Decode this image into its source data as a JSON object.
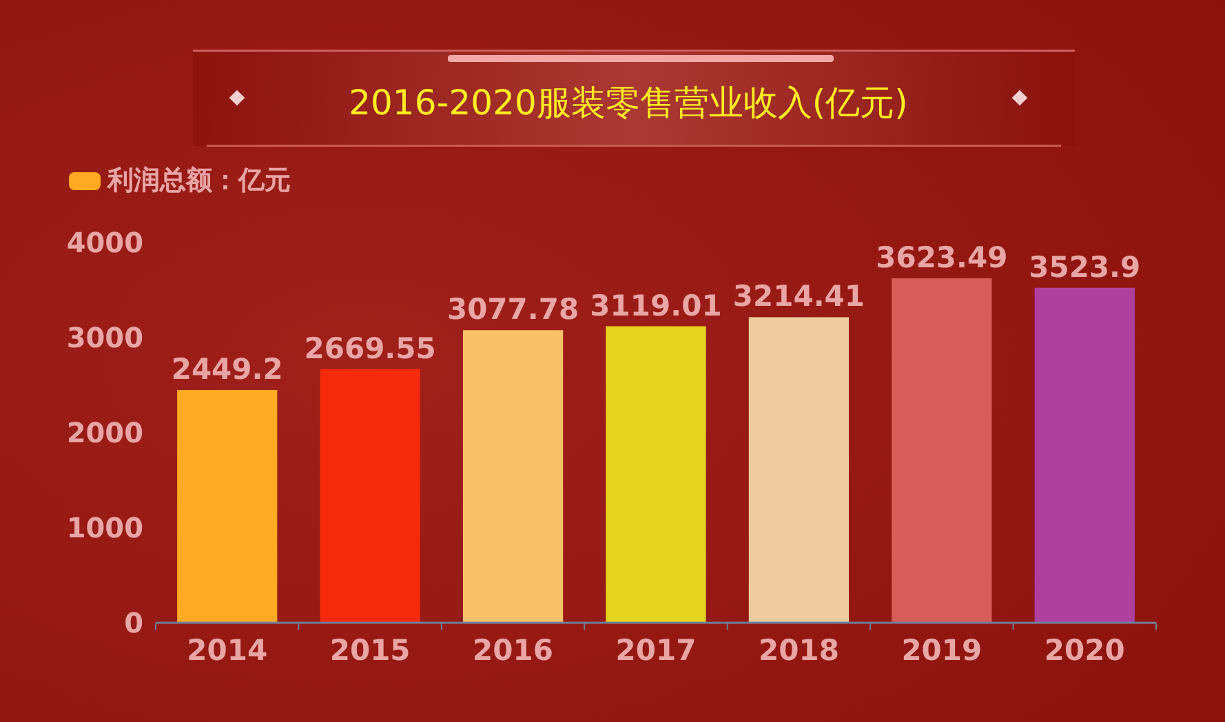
{
  "chart_data": {
    "type": "bar",
    "title": "2016-2020服装零售营业收入(亿元)",
    "categories": [
      "2014",
      "2015",
      "2016",
      "2017",
      "2018",
      "2019",
      "2020"
    ],
    "series": [
      {
        "name": "利润总额：亿元",
        "color": "#ffaa22",
        "colors": [
          "#ffaa22",
          "#f42a0b",
          "#f9c26a",
          "#e6d520",
          "#efcba0",
          "#d75d5a",
          "#b0409e"
        ],
        "values": [
          2449.2,
          2669.55,
          3077.78,
          3119.01,
          3214.41,
          3623.49,
          3523.9
        ]
      }
    ],
    "ylim": [
      0,
      4000
    ],
    "yticks": [
      0,
      1000,
      2000,
      3000,
      4000
    ],
    "grid": false,
    "legend": "top left",
    "data_labels": true
  }
}
